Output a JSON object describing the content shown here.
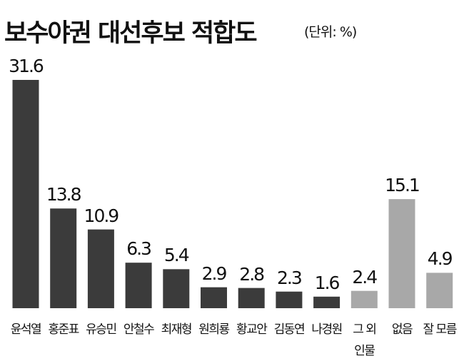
{
  "chart_data": {
    "type": "bar",
    "title": "보수야권 대선후보 적합도",
    "subtitle": "(단위: %)",
    "categories": [
      "윤석열",
      "홍준표",
      "유승민",
      "안철수",
      "최재형",
      "원희룡",
      "황교안",
      "김동연",
      "나경원",
      "그 외\n인물",
      "없음",
      "잘 모름"
    ],
    "values": [
      31.6,
      13.8,
      10.9,
      6.3,
      5.4,
      2.9,
      2.8,
      2.3,
      1.6,
      2.4,
      15.1,
      4.9
    ],
    "colors": [
      "#3b3b3b",
      "#3b3b3b",
      "#3b3b3b",
      "#3b3b3b",
      "#3b3b3b",
      "#3b3b3b",
      "#3b3b3b",
      "#3b3b3b",
      "#3b3b3b",
      "#a8a8a8",
      "#a8a8a8",
      "#a8a8a8"
    ]
  }
}
